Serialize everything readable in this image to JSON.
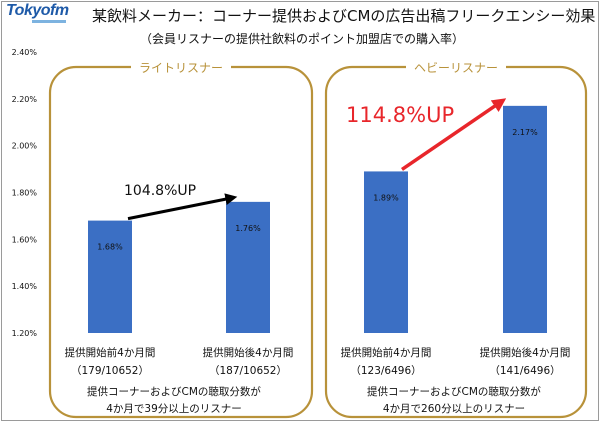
{
  "header": {
    "logo": "Tokyofm",
    "title": "某飲料メーカー：コーナー提供およびCMの広告出稿フリークエンシー効果",
    "subtitle": "（会員リスナーの提供社飲料のポイント加盟店での購入率）"
  },
  "colors": {
    "bar": "#3b6fc4",
    "panel_border": "#b8923a",
    "arrow_black": "#000000",
    "arrow_red": "#e8262b",
    "highlight_red": "#e8262b"
  },
  "chart_data": {
    "type": "bar",
    "ylim": [
      1.2,
      2.4
    ],
    "yticks": [
      "1.20%",
      "1.40%",
      "1.60%",
      "1.80%",
      "2.00%",
      "2.20%",
      "2.40%"
    ],
    "ytick_values": [
      1.2,
      1.4,
      1.6,
      1.8,
      2.0,
      2.2,
      2.4
    ],
    "grid": false,
    "groups": [
      {
        "title": "ライトリスナー",
        "bars": [
          {
            "value": 1.68,
            "label": "1.68%",
            "cat1": "提供開始前4か月間",
            "cat2": "（179/10652）"
          },
          {
            "value": 1.76,
            "label": "1.76%",
            "cat1": "提供開始後4か月間",
            "cat2": "（187/10652）"
          }
        ],
        "lift": "104.8%UP",
        "note1": "提供コーナーおよびCMの聴取分数が",
        "note2": "4か月で39分以上のリスナー"
      },
      {
        "title": "ヘビーリスナー",
        "bars": [
          {
            "value": 1.89,
            "label": "1.89%",
            "cat1": "提供開始前4か月間",
            "cat2": "（123/6496）"
          },
          {
            "value": 2.17,
            "label": "2.17%",
            "cat1": "提供開始後4か月間",
            "cat2": "（141/6496）"
          }
        ],
        "lift": "114.8%UP",
        "note1": "提供コーナーおよびCMの聴取分数が",
        "note2": "4か月で260分以上のリスナー"
      }
    ]
  }
}
